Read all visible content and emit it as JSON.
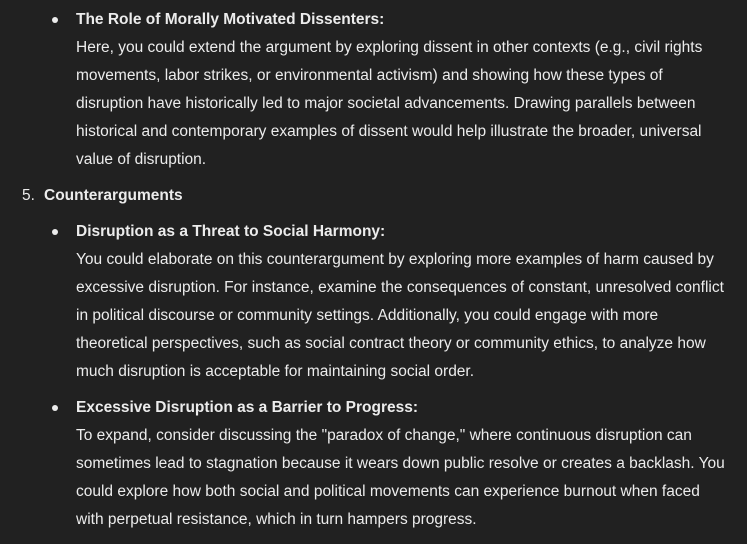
{
  "section_top": {
    "bullets": [
      {
        "title": "The Role of Morally Motivated Dissenters:",
        "body": "Here, you could extend the argument by exploring dissent in other contexts (e.g., civil rights movements, labor strikes, or environmental activism) and showing how these types of disruption have historically led to major societal advancements. Drawing parallels between historical and contemporary examples of dissent would help illustrate the broader, universal value of disruption."
      }
    ]
  },
  "section_5": {
    "number": "5.",
    "title": "Counterarguments",
    "bullets": [
      {
        "title": "Disruption as a Threat to Social Harmony:",
        "body": "You could elaborate on this counterargument by exploring more examples of harm caused by excessive disruption. For instance, examine the consequences of constant, unresolved conflict in political discourse or community settings. Additionally, you could engage with more theoretical perspectives, such as social contract theory or community ethics, to analyze how much disruption is acceptable for maintaining social order."
      },
      {
        "title": "Excessive Disruption as a Barrier to Progress:",
        "body": "To expand, consider discussing the \"paradox of change,\" where continuous disruption can sometimes lead to stagnation because it wears down public resolve or creates a backlash. You could explore how both social and political movements can experience burnout when faced with perpetual resistance, which in turn hampers progress."
      }
    ]
  }
}
